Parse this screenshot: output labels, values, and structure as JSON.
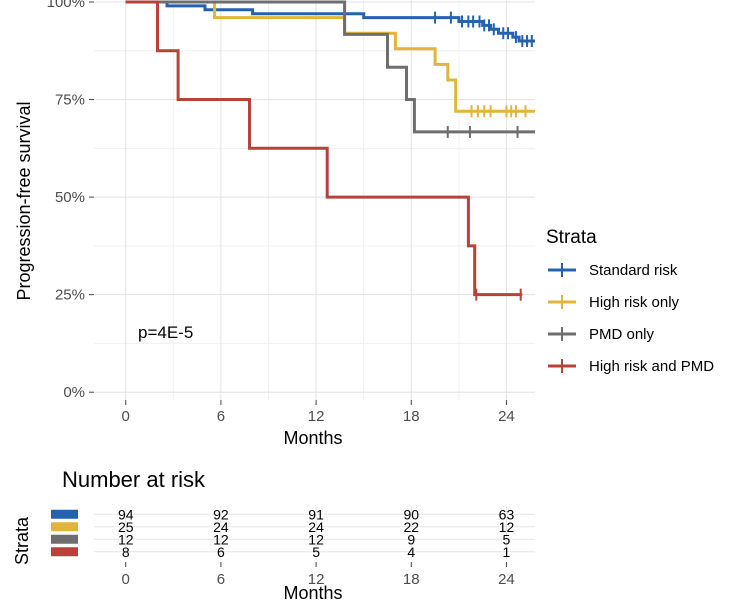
{
  "chart_data": [
    {
      "type": "line",
      "subtype": "kaplan-meier-step",
      "xlabel": "Months",
      "ylabel": "Progression-free survival",
      "xlim": [
        -2,
        25.8
      ],
      "ylim": [
        -2,
        100
      ],
      "x_ticks": [
        0,
        6,
        12,
        18,
        24
      ],
      "y_ticks": [
        0,
        25,
        50,
        75,
        100
      ],
      "y_tick_labels": [
        "0%",
        "25%",
        "50%",
        "75%",
        "100%"
      ],
      "grid": true,
      "annotation": "p=4E-5",
      "legend": {
        "title": "Strata",
        "position": "right"
      },
      "series": [
        {
          "name": "Standard risk",
          "color": "#2462B0",
          "steps": [
            [
              0,
              100
            ],
            [
              2,
              100
            ],
            [
              2.6,
              99
            ],
            [
              5,
              98
            ],
            [
              8,
              97
            ],
            [
              13,
              97
            ],
            [
              15,
              96
            ],
            [
              18,
              96
            ],
            [
              21,
              95
            ],
            [
              22.5,
              94
            ],
            [
              23,
              93
            ],
            [
              23.5,
              92
            ],
            [
              24,
              92
            ],
            [
              24.4,
              91
            ],
            [
              24.8,
              90
            ],
            [
              25.8,
              90
            ]
          ],
          "censor_x": [
            19.5,
            20.5,
            21.2,
            21.6,
            21.9,
            22.3,
            22.6,
            22.9,
            23.2,
            23.8,
            24.1,
            24.6,
            25.0,
            25.3,
            25.6
          ]
        },
        {
          "name": "High risk only",
          "color": "#E2B43A",
          "steps": [
            [
              0,
              100
            ],
            [
              5.6,
              100
            ],
            [
              5.6,
              96
            ],
            [
              13.8,
              96
            ],
            [
              13.8,
              92
            ],
            [
              17,
              92
            ],
            [
              17,
              88
            ],
            [
              19.5,
              88
            ],
            [
              19.5,
              84
            ],
            [
              20.3,
              84
            ],
            [
              20.3,
              80
            ],
            [
              20.6,
              80
            ],
            [
              20.8,
              72
            ],
            [
              25.8,
              72
            ]
          ],
          "censor_x": [
            21.8,
            22.2,
            22.6,
            23.0,
            24.0,
            24.3,
            24.6,
            25.2
          ]
        },
        {
          "name": "PMD only",
          "color": "#6E6E6E",
          "steps": [
            [
              0,
              100
            ],
            [
              13.8,
              100
            ],
            [
              13.8,
              91.7
            ],
            [
              16.5,
              91.7
            ],
            [
              16.5,
              83.3
            ],
            [
              17.7,
              83.3
            ],
            [
              17.7,
              75
            ],
            [
              18.2,
              75
            ],
            [
              18.2,
              66.7
            ],
            [
              25.8,
              66.7
            ]
          ],
          "censor_x": [
            20.3,
            21.7,
            24.7
          ]
        },
        {
          "name": "High risk and PMD",
          "color": "#B6423A",
          "steps": [
            [
              0,
              100
            ],
            [
              2,
              100
            ],
            [
              2,
              87.5
            ],
            [
              3.3,
              87.5
            ],
            [
              3.3,
              75
            ],
            [
              7.8,
              75
            ],
            [
              7.8,
              62.5
            ],
            [
              12.7,
              62.5
            ],
            [
              12.7,
              50
            ],
            [
              21.6,
              50
            ],
            [
              21.6,
              37.5
            ],
            [
              22,
              37.5
            ],
            [
              22,
              25
            ],
            [
              25,
              25
            ]
          ],
          "censor_x": [
            22.1,
            24.9
          ]
        }
      ]
    },
    {
      "type": "table",
      "title": "Number at risk",
      "row_axis_label": "Strata",
      "xlabel": "Months",
      "x_ticks": [
        0,
        6,
        12,
        18,
        24
      ],
      "rows": [
        {
          "name": "Standard risk",
          "color": "#2462B0",
          "values": [
            "94",
            "92",
            "91",
            "90",
            "63"
          ]
        },
        {
          "name": "High risk only",
          "color": "#E2B43A",
          "values": [
            "25",
            "24",
            "24",
            "22",
            "12"
          ]
        },
        {
          "name": "PMD only",
          "color": "#6E6E6E",
          "values": [
            "12",
            "12",
            "12",
            "9",
            "5"
          ]
        },
        {
          "name": "High risk and PMD",
          "color": "#B6423A",
          "values": [
            "8",
            "6",
            "5",
            "4",
            "1"
          ]
        }
      ]
    }
  ]
}
